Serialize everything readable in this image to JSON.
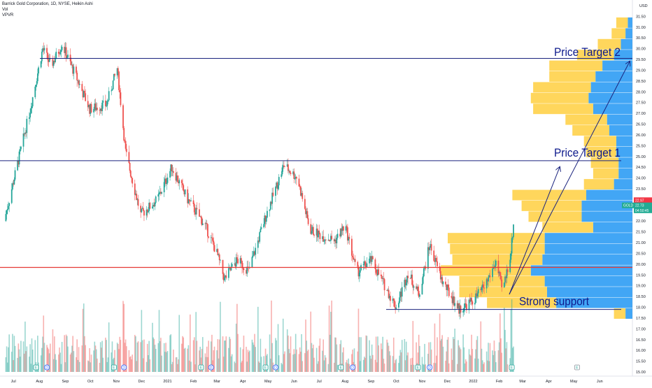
{
  "header": {
    "title": "Barrick Gold Corporation, 1D, NYSE, Heikin Ashi",
    "indicator_vol": "Vol",
    "indicator_vpvr": "VPVR"
  },
  "currency": "USD",
  "colors": {
    "up": "#26a69a",
    "down": "#ef5350",
    "target_line": "#1a237e",
    "support_line": "#e53935",
    "vp_blue": "#2196f3",
    "vp_yellow": "#ffcc33",
    "annotation_text": "#0d1a8c",
    "badge_green": "#22ab94",
    "badge_red": "#f23645"
  },
  "price_badges": [
    {
      "label": "",
      "value": "22.97",
      "color": "#f23645"
    },
    {
      "label": "GOLD",
      "value": "22.73",
      "color": "#22ab94"
    },
    {
      "label": "",
      "value": "04:50:45",
      "color": "#22ab94"
    }
  ],
  "annotations": [
    {
      "text": "Price Target 2",
      "price": 29.5
    },
    {
      "text": "Price Target 1",
      "price": 24.8
    },
    {
      "text": "Strong support",
      "price": 17.9
    }
  ],
  "event_markers": [
    "E",
    "D",
    "E",
    "D",
    "E",
    "D",
    "E",
    "D",
    "E",
    "D",
    "E",
    "D",
    "E",
    "E"
  ],
  "chart_data": {
    "type": "candlestick",
    "title": "Barrick Gold Corporation, 1D, NYSE, Heikin Ashi",
    "y_axis": {
      "range": [
        15.0,
        32.0
      ],
      "ticks": [
        "15.00",
        "15.50",
        "16.00",
        "16.50",
        "17.00",
        "17.50",
        "18.00",
        "18.50",
        "19.00",
        "19.50",
        "20.00",
        "20.50",
        "21.00",
        "21.50",
        "22.00",
        "22.50",
        "23.00",
        "23.50",
        "24.00",
        "24.50",
        "25.00",
        "25.50",
        "26.00",
        "26.50",
        "27.00",
        "27.50",
        "28.00",
        "28.50",
        "29.00",
        "29.50",
        "30.00",
        "30.50",
        "31.00",
        "31.50"
      ]
    },
    "x_axis": {
      "ticks": [
        "Jul",
        "Aug",
        "Sep",
        "Oct",
        "Nov",
        "Dec",
        "2021",
        "Feb",
        "Mar",
        "Apr",
        "May",
        "Jun",
        "Jul",
        "Aug",
        "Sep",
        "Oct",
        "Nov",
        "Dec",
        "2022",
        "Feb",
        "Mar",
        "Apr",
        "May",
        "Jun"
      ]
    },
    "series_anchors": [
      {
        "date": "2020-06-20",
        "close": 22.0
      },
      {
        "date": "2020-07-05",
        "close": 24.5
      },
      {
        "date": "2020-07-20",
        "close": 27.0
      },
      {
        "date": "2020-08-05",
        "close": 30.0
      },
      {
        "date": "2020-08-15",
        "close": 29.2
      },
      {
        "date": "2020-08-28",
        "close": 30.2
      },
      {
        "date": "2020-09-15",
        "close": 28.6
      },
      {
        "date": "2020-09-30",
        "close": 27.2
      },
      {
        "date": "2020-10-20",
        "close": 27.4
      },
      {
        "date": "2020-11-02",
        "close": 29.1
      },
      {
        "date": "2020-11-12",
        "close": 25.2
      },
      {
        "date": "2020-11-30",
        "close": 22.3
      },
      {
        "date": "2020-12-20",
        "close": 23.0
      },
      {
        "date": "2021-01-06",
        "close": 24.5
      },
      {
        "date": "2021-01-25",
        "close": 23.0
      },
      {
        "date": "2021-02-15",
        "close": 21.8
      },
      {
        "date": "2021-03-01",
        "close": 20.5
      },
      {
        "date": "2021-03-10",
        "close": 19.3
      },
      {
        "date": "2021-03-25",
        "close": 20.2
      },
      {
        "date": "2021-04-08",
        "close": 19.7
      },
      {
        "date": "2021-04-28",
        "close": 22.2
      },
      {
        "date": "2021-05-20",
        "close": 24.6
      },
      {
        "date": "2021-06-05",
        "close": 24.0
      },
      {
        "date": "2021-06-20",
        "close": 21.6
      },
      {
        "date": "2021-07-05",
        "close": 21.3
      },
      {
        "date": "2021-07-20",
        "close": 21.1
      },
      {
        "date": "2021-08-01",
        "close": 21.8
      },
      {
        "date": "2021-08-15",
        "close": 19.6
      },
      {
        "date": "2021-09-01",
        "close": 20.2
      },
      {
        "date": "2021-09-20",
        "close": 18.8
      },
      {
        "date": "2021-10-01",
        "close": 18.0
      },
      {
        "date": "2021-10-15",
        "close": 19.6
      },
      {
        "date": "2021-10-28",
        "close": 18.6
      },
      {
        "date": "2021-11-10",
        "close": 20.9
      },
      {
        "date": "2021-11-25",
        "close": 19.2
      },
      {
        "date": "2021-12-15",
        "close": 17.9
      },
      {
        "date": "2022-01-01",
        "close": 18.3
      },
      {
        "date": "2022-01-15",
        "close": 19.0
      },
      {
        "date": "2022-01-28",
        "close": 20.1
      },
      {
        "date": "2022-02-05",
        "close": 18.7
      },
      {
        "date": "2022-02-15",
        "close": 20.6
      },
      {
        "date": "2022-02-20",
        "close": 22.7
      }
    ],
    "horizontal_lines": [
      {
        "price": 29.55,
        "role": "Price Target 2"
      },
      {
        "price": 24.8,
        "role": "Price Target 1"
      },
      {
        "price": 19.85,
        "role": "support"
      },
      {
        "price": 17.9,
        "role": "Strong support"
      }
    ],
    "volume_profile_levels": [
      {
        "price": 31.2,
        "up": 0.5,
        "down": 0.2
      },
      {
        "price": 30.7,
        "up": 0.6,
        "down": 0.3
      },
      {
        "price": 30.2,
        "up": 1.0,
        "down": 0.5
      },
      {
        "price": 29.7,
        "up": 1.6,
        "down": 0.8
      },
      {
        "price": 29.2,
        "up": 2.3,
        "down": 1.3
      },
      {
        "price": 28.7,
        "up": 2.0,
        "down": 1.6
      },
      {
        "price": 28.2,
        "up": 2.5,
        "down": 1.8
      },
      {
        "price": 27.7,
        "up": 2.5,
        "down": 1.9
      },
      {
        "price": 27.2,
        "up": 2.6,
        "down": 1.7
      },
      {
        "price": 26.7,
        "up": 1.8,
        "down": 1.1
      },
      {
        "price": 26.2,
        "up": 1.6,
        "down": 1.0
      },
      {
        "price": 25.7,
        "up": 1.4,
        "down": 0.7
      },
      {
        "price": 25.2,
        "up": 1.3,
        "down": 0.7
      },
      {
        "price": 24.7,
        "up": 1.2,
        "down": 0.6
      },
      {
        "price": 24.2,
        "up": 1.1,
        "down": 0.6
      },
      {
        "price": 23.7,
        "up": 1.3,
        "down": 0.8
      },
      {
        "price": 23.2,
        "up": 3.2,
        "down": 2.0
      },
      {
        "price": 22.7,
        "up": 2.6,
        "down": 2.2
      },
      {
        "price": 22.2,
        "up": 2.3,
        "down": 2.2
      },
      {
        "price": 21.7,
        "up": 2.2,
        "down": 1.7
      },
      {
        "price": 21.2,
        "up": 4.2,
        "down": 3.8
      },
      {
        "price": 20.7,
        "up": 4.1,
        "down": 3.8
      },
      {
        "price": 20.2,
        "up": 3.9,
        "down": 3.9
      },
      {
        "price": 19.7,
        "up": 3.9,
        "down": 4.4
      },
      {
        "price": 19.2,
        "up": 3.7,
        "down": 3.8
      },
      {
        "price": 18.7,
        "up": 3.8,
        "down": 3.7
      },
      {
        "price": 18.2,
        "up": 3.0,
        "down": 3.3
      },
      {
        "price": 17.7,
        "up": 0.5,
        "down": 0.3
      }
    ]
  }
}
